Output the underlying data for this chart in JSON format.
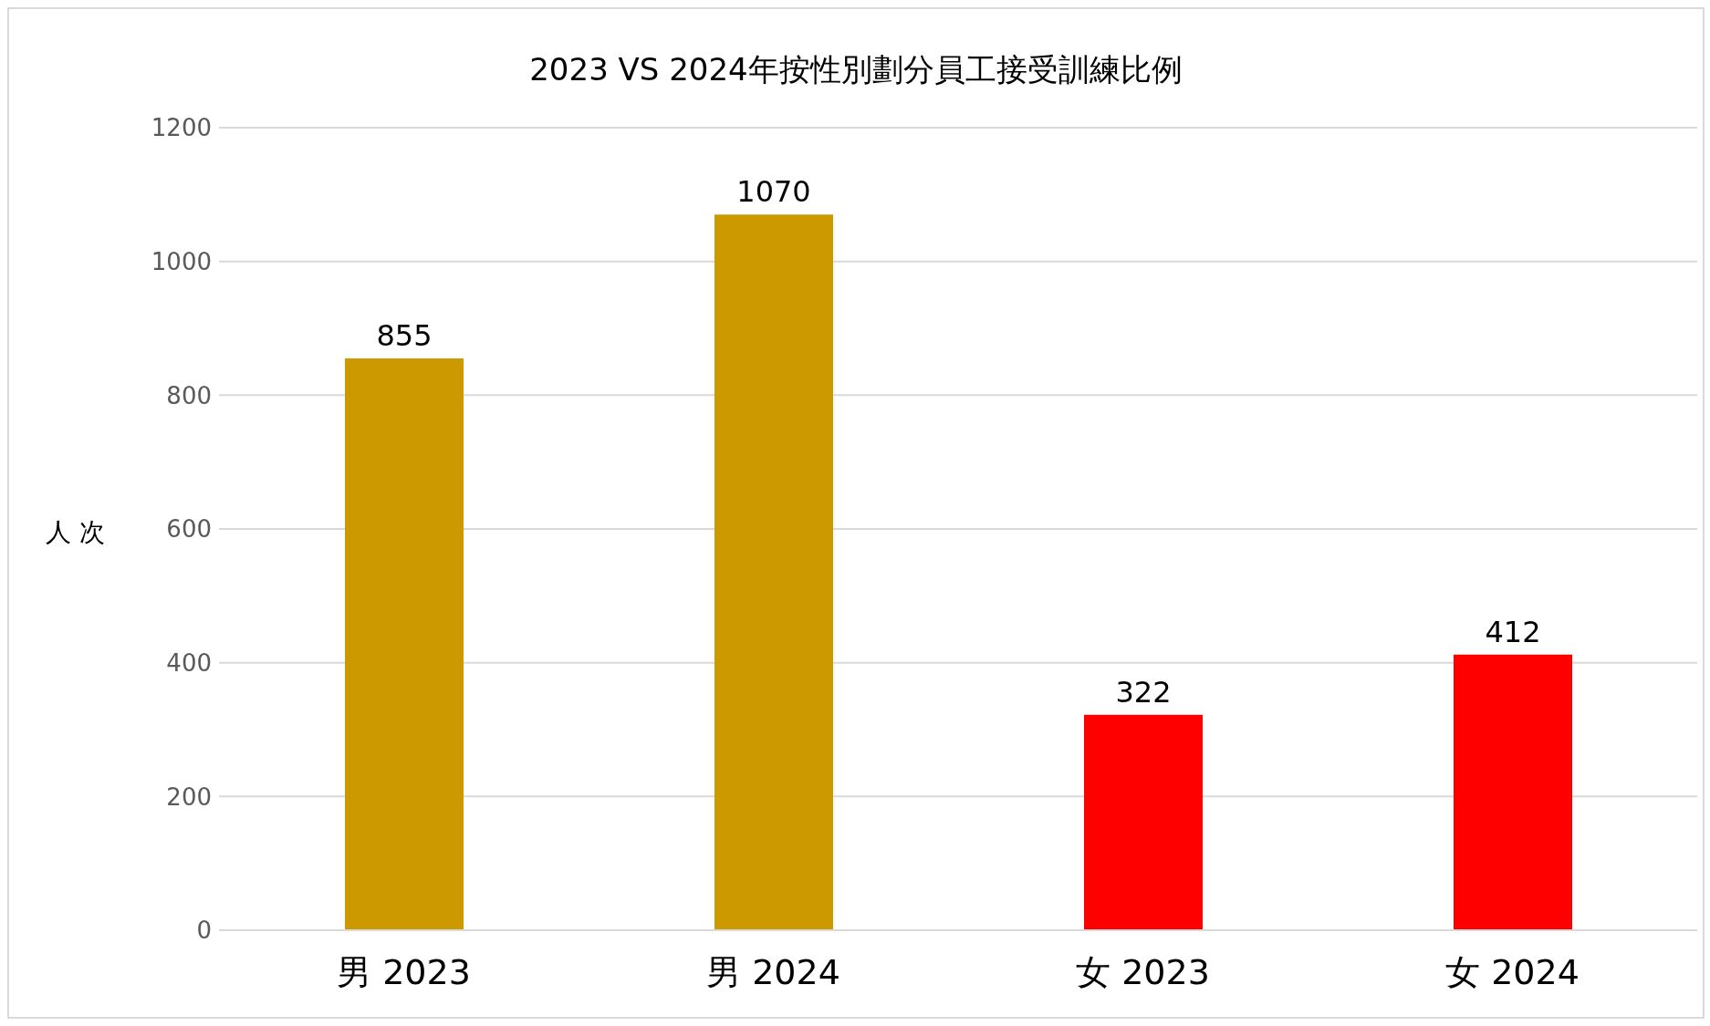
{
  "chart_data": {
    "type": "bar",
    "title": "2023 VS 2024年按性別劃分員工接受訓練比例",
    "ylabel": "人 次",
    "categories": [
      "男 2023",
      "男 2024",
      "女 2023",
      "女 2024"
    ],
    "values": [
      855,
      1070,
      322,
      412
    ],
    "colors": [
      "#cc9900",
      "#cc9900",
      "#ff0000",
      "#ff0000"
    ],
    "ylim": [
      0,
      1200
    ],
    "yticks": [
      0,
      200,
      400,
      600,
      800,
      1000,
      1200
    ],
    "grid": "y",
    "data_labels": true
  }
}
